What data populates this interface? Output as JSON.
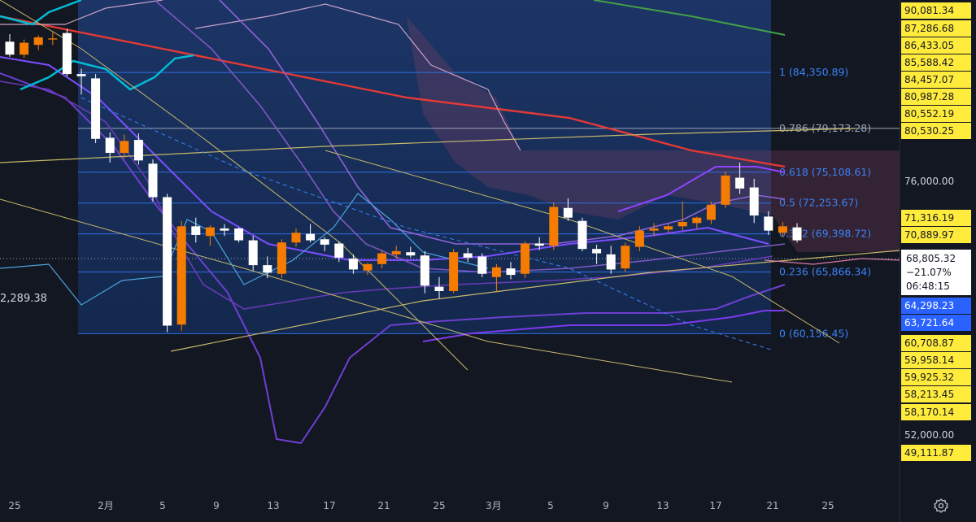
{
  "chart_data": {
    "type": "candlestick",
    "price_axis": {
      "labels": [
        "90,081.34",
        "87,286.68",
        "86,433.05",
        "85,588.42",
        "84,457.07",
        "80,987.28",
        "80,552.19",
        "80,530.25",
        "76,000.00",
        "71,316.19",
        "70,889.97",
        "68,805.32",
        "64,298.23",
        "63,721.64",
        "60,708.87",
        "59,958.14",
        "59,925.32",
        "58,213.45",
        "58,170.14",
        "52,000.00",
        "49,111.87"
      ],
      "plain_ticks": [
        "76,000.00",
        "52,000.00"
      ]
    },
    "last_price": {
      "price": "68,805.32",
      "change": "−21.07%",
      "countdown": "06:48:15"
    },
    "left_readout": "2,289.38",
    "x_ticks": [
      "25",
      "2月",
      "5",
      "9",
      "13",
      "17",
      "21",
      "25",
      "3月",
      "5",
      "9",
      "13",
      "17",
      "21",
      "25"
    ],
    "fib_levels": [
      {
        "ratio": "1",
        "price": "84,350.89",
        "label": "1 (84,350.89)"
      },
      {
        "ratio": "0.786",
        "price": "79,173.28",
        "label": "0.786 (79,173.28)"
      },
      {
        "ratio": "0.618",
        "price": "75,108.61",
        "label": "0.618 (75,108.61)"
      },
      {
        "ratio": "0.5",
        "price": "72,253.67",
        "label": "0.5 (72,253.67)"
      },
      {
        "ratio": "0.382",
        "price": "69,398.72",
        "label": "0.382 (69,398.72)"
      },
      {
        "ratio": "0.236",
        "price": "65,866.34",
        "label": "0.236 (65,866.34)"
      },
      {
        "ratio": "0",
        "price": "60,156.45",
        "label": "0 (60,156.45)"
      }
    ],
    "candles": [
      {
        "o": 87200,
        "h": 87900,
        "l": 85800,
        "c": 86000
      },
      {
        "o": 86000,
        "h": 87400,
        "l": 85700,
        "c": 87100
      },
      {
        "o": 86900,
        "h": 87800,
        "l": 86400,
        "c": 87600
      },
      {
        "o": 87400,
        "h": 88200,
        "l": 86900,
        "c": 87500
      },
      {
        "o": 88000,
        "h": 88400,
        "l": 84000,
        "c": 84200
      },
      {
        "o": 84200,
        "h": 84700,
        "l": 82300,
        "c": 84000
      },
      {
        "o": 83800,
        "h": 84200,
        "l": 77800,
        "c": 78200
      },
      {
        "o": 78300,
        "h": 78800,
        "l": 76000,
        "c": 76900
      },
      {
        "o": 76900,
        "h": 78600,
        "l": 76400,
        "c": 78000
      },
      {
        "o": 78100,
        "h": 78700,
        "l": 75800,
        "c": 76200
      },
      {
        "o": 75900,
        "h": 76300,
        "l": 72400,
        "c": 72800
      },
      {
        "o": 72800,
        "h": 73100,
        "l": 60300,
        "c": 60900
      },
      {
        "o": 61000,
        "h": 70600,
        "l": 60400,
        "c": 70100
      },
      {
        "o": 70100,
        "h": 70900,
        "l": 68600,
        "c": 69300
      },
      {
        "o": 69200,
        "h": 70200,
        "l": 68300,
        "c": 70000
      },
      {
        "o": 69900,
        "h": 70300,
        "l": 69200,
        "c": 69700
      },
      {
        "o": 69900,
        "h": 70000,
        "l": 68600,
        "c": 68800
      },
      {
        "o": 68800,
        "h": 69200,
        "l": 66000,
        "c": 66500
      },
      {
        "o": 66500,
        "h": 67300,
        "l": 65300,
        "c": 65800
      },
      {
        "o": 65700,
        "h": 68900,
        "l": 65300,
        "c": 68600
      },
      {
        "o": 68600,
        "h": 69900,
        "l": 68200,
        "c": 69500
      },
      {
        "o": 69400,
        "h": 70300,
        "l": 68600,
        "c": 68800
      },
      {
        "o": 68900,
        "h": 69100,
        "l": 67800,
        "c": 68400
      },
      {
        "o": 68500,
        "h": 68700,
        "l": 66800,
        "c": 67200
      },
      {
        "o": 67100,
        "h": 67500,
        "l": 65700,
        "c": 66100
      },
      {
        "o": 66000,
        "h": 66700,
        "l": 65600,
        "c": 66600
      },
      {
        "o": 66600,
        "h": 67900,
        "l": 66200,
        "c": 67600
      },
      {
        "o": 67500,
        "h": 68300,
        "l": 67100,
        "c": 67800
      },
      {
        "o": 67700,
        "h": 68200,
        "l": 67200,
        "c": 67400
      },
      {
        "o": 67400,
        "h": 67800,
        "l": 63900,
        "c": 64600
      },
      {
        "o": 64500,
        "h": 65400,
        "l": 63400,
        "c": 64100
      },
      {
        "o": 64100,
        "h": 68000,
        "l": 63900,
        "c": 67700
      },
      {
        "o": 67600,
        "h": 68100,
        "l": 66800,
        "c": 67200
      },
      {
        "o": 67300,
        "h": 67600,
        "l": 65400,
        "c": 65700
      },
      {
        "o": 65400,
        "h": 66600,
        "l": 64000,
        "c": 66300
      },
      {
        "o": 66200,
        "h": 66800,
        "l": 65200,
        "c": 65600
      },
      {
        "o": 65700,
        "h": 68700,
        "l": 65300,
        "c": 68500
      },
      {
        "o": 68500,
        "h": 69100,
        "l": 67900,
        "c": 68300
      },
      {
        "o": 68300,
        "h": 72300,
        "l": 67900,
        "c": 71900
      },
      {
        "o": 71800,
        "h": 72700,
        "l": 70600,
        "c": 70900
      },
      {
        "o": 70600,
        "h": 70900,
        "l": 67800,
        "c": 68000
      },
      {
        "o": 68000,
        "h": 68400,
        "l": 66600,
        "c": 67600
      },
      {
        "o": 67500,
        "h": 68300,
        "l": 65700,
        "c": 66100
      },
      {
        "o": 66200,
        "h": 68600,
        "l": 65900,
        "c": 68300
      },
      {
        "o": 68200,
        "h": 70100,
        "l": 67800,
        "c": 69700
      },
      {
        "o": 69700,
        "h": 70400,
        "l": 69200,
        "c": 69900
      },
      {
        "o": 69800,
        "h": 70300,
        "l": 69500,
        "c": 70100
      },
      {
        "o": 70100,
        "h": 72400,
        "l": 69700,
        "c": 70500
      },
      {
        "o": 70400,
        "h": 71000,
        "l": 69900,
        "c": 70900
      },
      {
        "o": 70700,
        "h": 72400,
        "l": 70300,
        "c": 72100
      },
      {
        "o": 72100,
        "h": 75200,
        "l": 71800,
        "c": 74800
      },
      {
        "o": 74600,
        "h": 76000,
        "l": 73100,
        "c": 73600
      },
      {
        "o": 73700,
        "h": 74500,
        "l": 70400,
        "c": 71100
      },
      {
        "o": 71000,
        "h": 71500,
        "l": 69300,
        "c": 69700
      },
      {
        "o": 69500,
        "h": 70500,
        "l": 69100,
        "c": 70100
      },
      {
        "o": 70000,
        "h": 70400,
        "l": 68600,
        "c": 68800
      }
    ]
  }
}
